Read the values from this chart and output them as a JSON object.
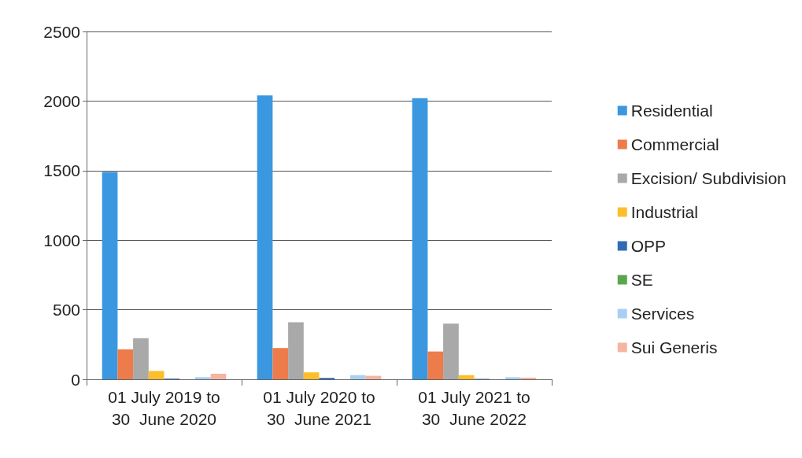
{
  "chart_data": {
    "type": "bar",
    "categories": [
      "01 July 2019 to\n30  June 2020",
      "01 July 2020 to\n30  June 2021",
      "01 July 2021 to\n30  June 2022"
    ],
    "series": [
      {
        "name": "Residential",
        "color": "#3a97e0",
        "values": [
          1490,
          2040,
          2020
        ]
      },
      {
        "name": "Commercial",
        "color": "#ee7b4a",
        "values": [
          215,
          225,
          200
        ]
      },
      {
        "name": "Excision/ Subdivision",
        "color": "#a9a9a9",
        "values": [
          295,
          410,
          400
        ]
      },
      {
        "name": "Industrial",
        "color": "#fcbf2c",
        "values": [
          60,
          50,
          30
        ]
      },
      {
        "name": "OPP",
        "color": "#2f6bb5",
        "values": [
          5,
          10,
          3
        ]
      },
      {
        "name": "SE",
        "color": "#5aa64a",
        "values": [
          0,
          0,
          0
        ]
      },
      {
        "name": "Services",
        "color": "#a9cff5",
        "values": [
          15,
          30,
          15
        ]
      },
      {
        "name": "Sui Generis",
        "color": "#f6b5a0",
        "values": [
          40,
          25,
          12
        ]
      }
    ],
    "ylim": [
      0,
      2500
    ],
    "yticks": [
      0,
      500,
      1000,
      1500,
      2000,
      2500
    ],
    "grid": "y",
    "legend": "right"
  }
}
